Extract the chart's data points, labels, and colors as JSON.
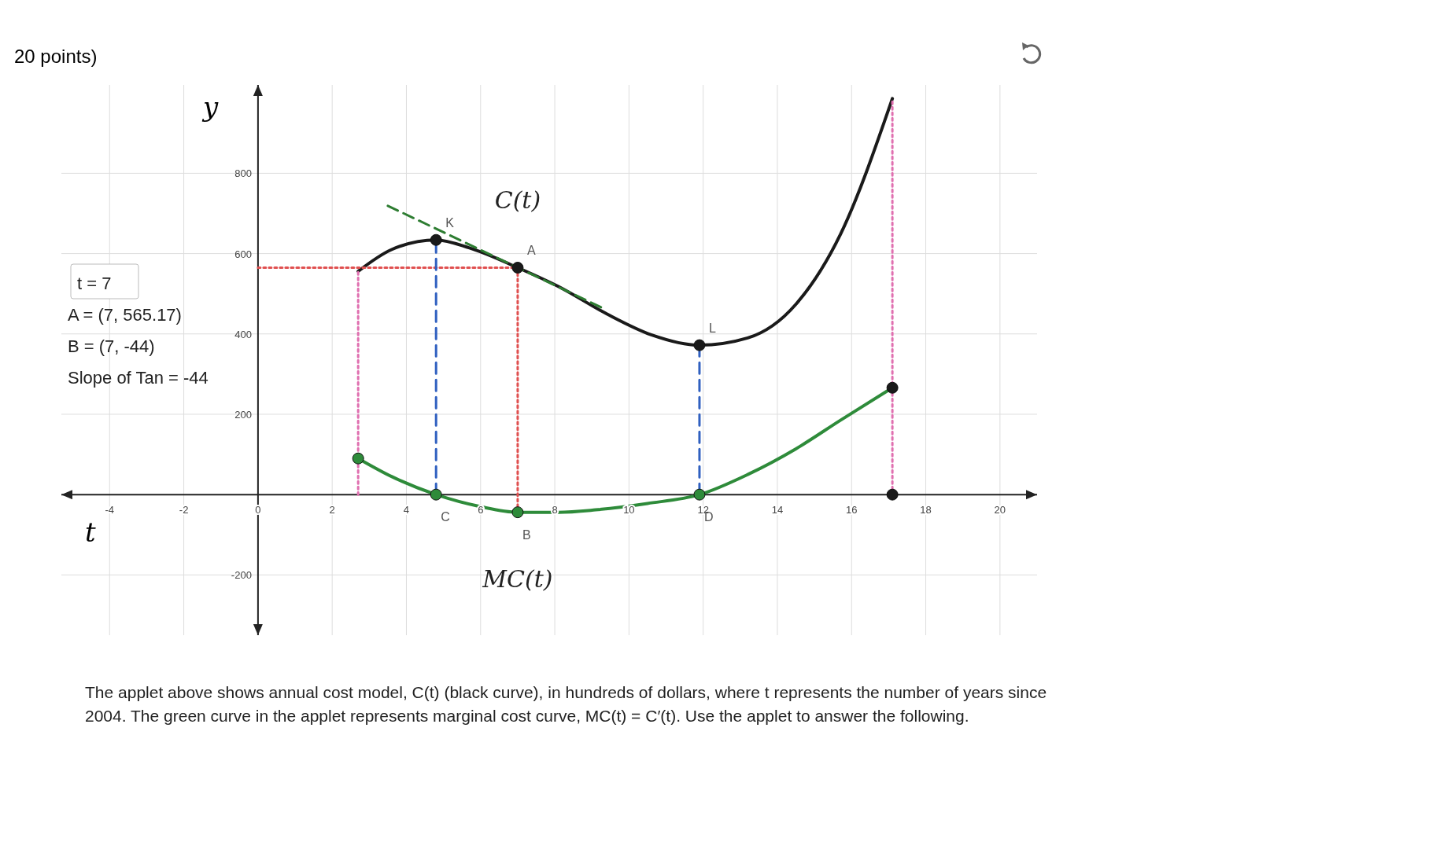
{
  "chart_data": {
    "type": "line",
    "xlabel": "t",
    "ylabel": "y",
    "xlim": [
      -5.3,
      21
    ],
    "ylim": [
      -350,
      1020
    ],
    "xticks": [
      -4,
      -2,
      0,
      2,
      4,
      6,
      8,
      10,
      12,
      14,
      16,
      18,
      20
    ],
    "yticks": [
      -200,
      200,
      400,
      600,
      800
    ],
    "grid": true,
    "legend": false,
    "marker": "none",
    "line_style": "solid",
    "series": [
      {
        "name": "C(t)",
        "color": "#1a1a1a",
        "x": [
          2.7,
          3.6,
          4.8,
          5.7,
          7,
          8.1,
          9.4,
          10.6,
          11.9,
          13.2,
          14.5,
          15.7,
          17.1
        ],
        "values": [
          556,
          610,
          634,
          614,
          565,
          518,
          450,
          398,
          372,
          390,
          474,
          648,
          986
        ]
      },
      {
        "name": "MC(t)",
        "color": "#2e8b3a",
        "x": [
          2.7,
          3.6,
          4.8,
          6,
          7,
          8.1,
          9.1,
          10.5,
          11.9,
          13.2,
          14.5,
          15.7,
          17.1
        ],
        "values": [
          90,
          45,
          0,
          -30,
          -44,
          -44,
          -38,
          -22,
          0,
          50,
          114,
          185,
          266
        ]
      },
      {
        "type": "line",
        "color": "#2e7d32",
        "line_style": "dashed",
        "x": [
          3.5,
          9.3
        ],
        "values": [
          719,
          464
        ]
      },
      {
        "type": "line",
        "color": "#e05050",
        "line_style": "dotted",
        "x": [
          0,
          7
        ],
        "values": [
          565,
          565
        ]
      },
      {
        "type": "line",
        "color": "#e070b0",
        "line_style": "dotted",
        "x": [
          2.7,
          2.7
        ],
        "values": [
          0,
          556
        ]
      },
      {
        "type": "line",
        "color": "#3060c0",
        "line_style": "dashed",
        "x": [
          4.8,
          4.8
        ],
        "values": [
          0,
          634
        ]
      },
      {
        "type": "line",
        "color": "#e05050",
        "line_style": "dotted",
        "x": [
          7,
          7
        ],
        "values": [
          -44,
          565
        ]
      },
      {
        "type": "line",
        "color": "#3060c0",
        "line_style": "dashed",
        "x": [
          11.9,
          11.9
        ],
        "values": [
          0,
          372
        ]
      },
      {
        "type": "line",
        "color": "#e070b0",
        "line_style": "dotted",
        "x": [
          17.1,
          17.1
        ],
        "values": [
          0,
          986
        ]
      },
      {
        "type": "scatter",
        "marker": "circle",
        "x": [
          4.8,
          7,
          11.9,
          4.8,
          7,
          11.9,
          2.7,
          17.1,
          17.1
        ],
        "values": [
          634,
          565,
          372,
          0,
          -44,
          0,
          90,
          266,
          0
        ],
        "colors": [
          "#1a1a1a",
          "#1a1a1a",
          "#1a1a1a",
          "#2e8b3a",
          "#2e8b3a",
          "#2e8b3a",
          "#2e8b3a",
          "#1a1a1a",
          "#1a1a1a"
        ]
      }
    ],
    "annotations": [
      "20 points)",
      "t = 7",
      "A = (7, 565.17)",
      "B = (7, -44)",
      "Slope of Tan = -44",
      "The applet above shows annual cost model, C(t) (black curve), in hundreds of dollars, where t represents the number of years since 2004. The green curve in the applet represents marginal cost curve, MC(t) = C′(t). Use the applet to answer the following.",
      {
        "text": "K",
        "x": 4.8,
        "y": 634
      },
      {
        "text": "A",
        "x": 7,
        "y": 565
      },
      {
        "text": "L",
        "x": 11.9,
        "y": 372
      },
      {
        "text": "C",
        "x": 4.8,
        "y": 0
      },
      {
        "text": "B",
        "x": 7,
        "y": -44
      },
      {
        "text": "D",
        "x": 11.9,
        "y": 0
      }
    ]
  }
}
